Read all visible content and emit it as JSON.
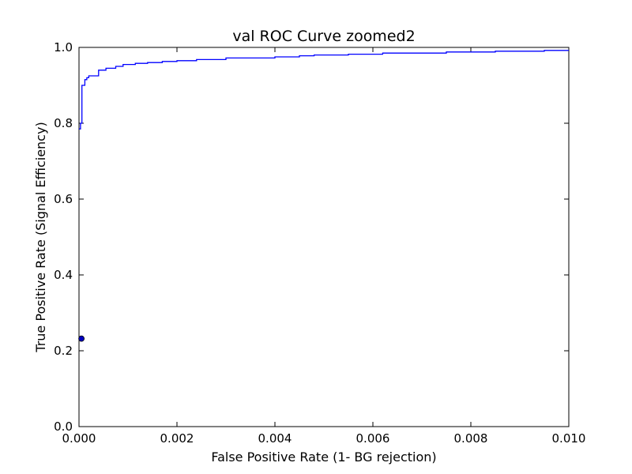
{
  "chart_data": {
    "type": "line",
    "title": "val ROC Curve zoomed2",
    "xlabel": "False Positive Rate (1- BG rejection)",
    "ylabel": "True Positive Rate (Signal Efficiency)",
    "xlim": [
      0.0,
      0.01
    ],
    "ylim": [
      0.0,
      1.0
    ],
    "xticks": [
      "0.000",
      "0.002",
      "0.004",
      "0.006",
      "0.008",
      "0.010"
    ],
    "yticks": [
      "0.0",
      "0.2",
      "0.4",
      "0.6",
      "0.8",
      "1.0"
    ],
    "grid": false,
    "series": [
      {
        "color": "#0000ff",
        "x": [
          0.0,
          3e-05,
          3e-05,
          6e-05,
          6e-05,
          0.00012,
          0.00012,
          0.00016,
          0.00016,
          0.0002,
          0.0002,
          0.0004,
          0.0004,
          0.00055,
          0.00055,
          0.00075,
          0.00075,
          0.0009,
          0.0009,
          0.00115,
          0.00115,
          0.0014,
          0.0014,
          0.0017,
          0.0017,
          0.002,
          0.002,
          0.0024,
          0.0024,
          0.003,
          0.003,
          0.004,
          0.004,
          0.0045,
          0.0045,
          0.0048,
          0.0048,
          0.0055,
          0.0055,
          0.0062,
          0.0062,
          0.0075,
          0.0075,
          0.0085,
          0.0085,
          0.0095,
          0.0095,
          0.01
        ],
        "y": [
          0.785,
          0.785,
          0.8,
          0.8,
          0.9,
          0.9,
          0.915,
          0.915,
          0.92,
          0.92,
          0.925,
          0.925,
          0.94,
          0.94,
          0.945,
          0.945,
          0.95,
          0.95,
          0.955,
          0.955,
          0.958,
          0.958,
          0.96,
          0.96,
          0.963,
          0.963,
          0.965,
          0.965,
          0.968,
          0.968,
          0.972,
          0.972,
          0.975,
          0.975,
          0.978,
          0.978,
          0.98,
          0.98,
          0.982,
          0.982,
          0.985,
          0.985,
          0.988,
          0.988,
          0.99,
          0.99,
          0.992,
          0.992
        ]
      }
    ],
    "markers": [
      {
        "x": 5e-05,
        "y": 0.232,
        "color": "#0000bf"
      }
    ]
  }
}
